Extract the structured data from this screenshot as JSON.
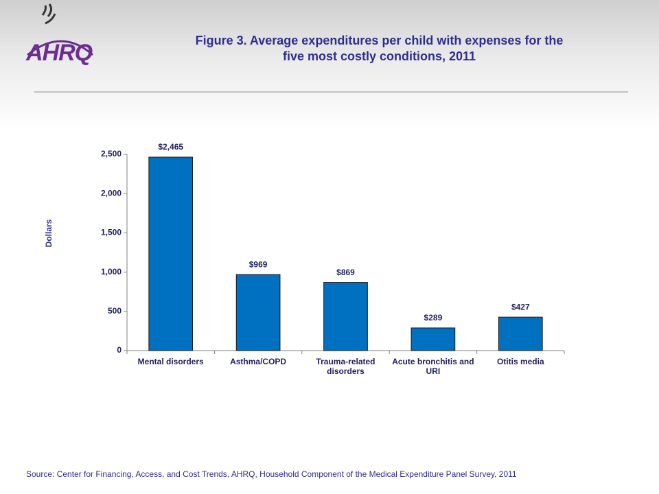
{
  "logo": "AHRQ",
  "chart_data": {
    "type": "bar",
    "title": "Figure 3. Average expenditures per child with expenses for the five most costly conditions, 2011",
    "y_label": "Dollars",
    "categories": [
      "Mental disorders",
      "Asthma/COPD",
      "Trauma-related disorders",
      "Acute bronchitis and URI",
      "Otitis media"
    ],
    "values": [
      2465,
      969,
      869,
      289,
      427
    ],
    "value_labels": [
      "$2,465",
      "$969",
      "$869",
      "$289",
      "$427"
    ],
    "color": "#0070c0",
    "ylim": [
      0,
      2500
    ],
    "yticks": [
      0,
      500,
      {
        "value": 1000,
        "label": "1,000"
      },
      {
        "value": 1500,
        "label": "1,500"
      },
      {
        "value": 2000,
        "label": "2,000"
      },
      {
        "value": 2500,
        "label": "2,500"
      }
    ],
    "source": "Source: Center for Financing, Access, and Cost Trends, AHRQ, Household Component of the Medical Expenditure Panel Survey, 2011"
  }
}
